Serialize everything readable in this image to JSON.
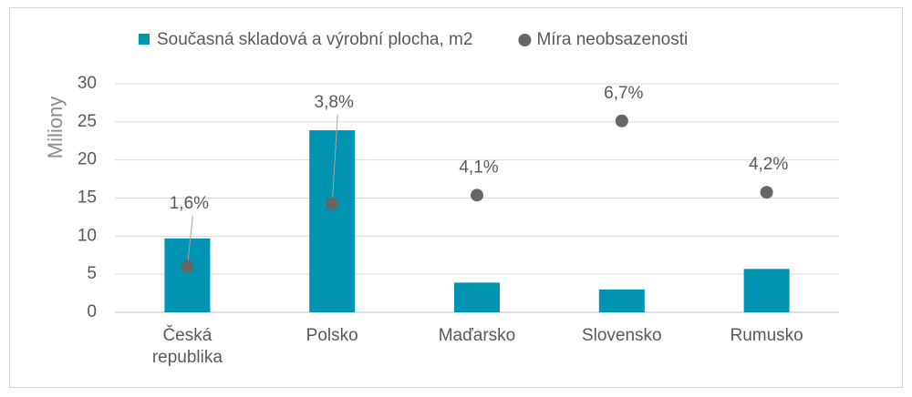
{
  "chart_data": {
    "type": "bar",
    "categories": [
      "Česká republika",
      "Polsko",
      "Maďarsko",
      "Slovensko",
      "Rumusko"
    ],
    "y_label": "Miliony",
    "ylim": [
      0,
      30
    ],
    "yticks": [
      0,
      5,
      10,
      15,
      20,
      25,
      30
    ],
    "y2lim": [
      0,
      8
    ],
    "grid": true,
    "legend": "top",
    "series": [
      {
        "name": "Současná skladová a výrobní plocha, m2",
        "type": "bar",
        "color": "#0094b3",
        "values": [
          9.7,
          23.9,
          3.9,
          3.0,
          5.7
        ]
      },
      {
        "name": "Míra neobsazenosti",
        "type": "scatter",
        "axis": "y2",
        "color": "#666666",
        "values": [
          1.6,
          3.8,
          4.1,
          6.7,
          4.2
        ],
        "value_labels": [
          "1,6%",
          "3,8%",
          "4,1%",
          "6,7%",
          "4,2%"
        ]
      }
    ]
  }
}
